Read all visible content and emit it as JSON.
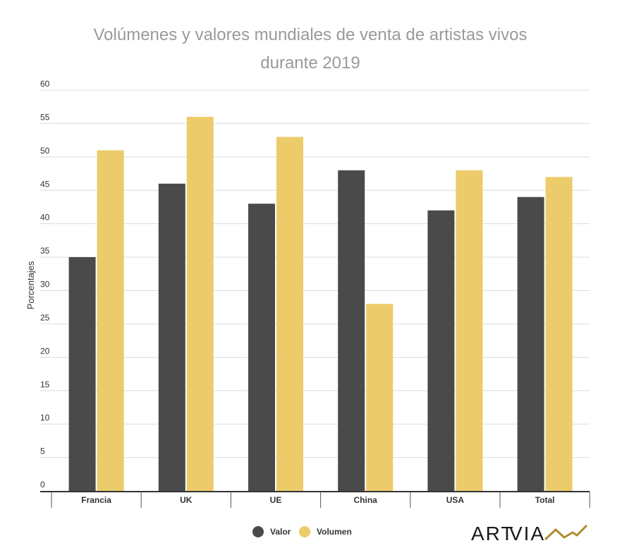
{
  "chart_data": {
    "type": "bar",
    "title": "Volúmenes y valores mundiales de venta de artistas vivos durante 2019",
    "title_lines": [
      "Volúmenes y valores mundiales de venta de artistas vivos",
      "durante 2019"
    ],
    "categories": [
      "Francia",
      "UK",
      "UE",
      "China",
      "USA",
      "Total"
    ],
    "series": [
      {
        "name": "Valor",
        "color": "#4a4a4a",
        "values": [
          35,
          46,
          43,
          48,
          42,
          44
        ]
      },
      {
        "name": "Volumen",
        "color": "#eccb6a",
        "values": [
          51,
          56,
          53,
          28,
          48,
          47
        ]
      }
    ],
    "xlabel": "",
    "ylabel": "Porcentajes",
    "ylim": [
      0,
      60
    ],
    "yticks": [
      0,
      5,
      10,
      15,
      20,
      25,
      30,
      35,
      40,
      45,
      50,
      55,
      60
    ],
    "grid": true,
    "legend_position": "bottom-center"
  },
  "logo": {
    "text_art": "ART",
    "text_via": "VIA",
    "mark_color": "#b08a2e"
  }
}
